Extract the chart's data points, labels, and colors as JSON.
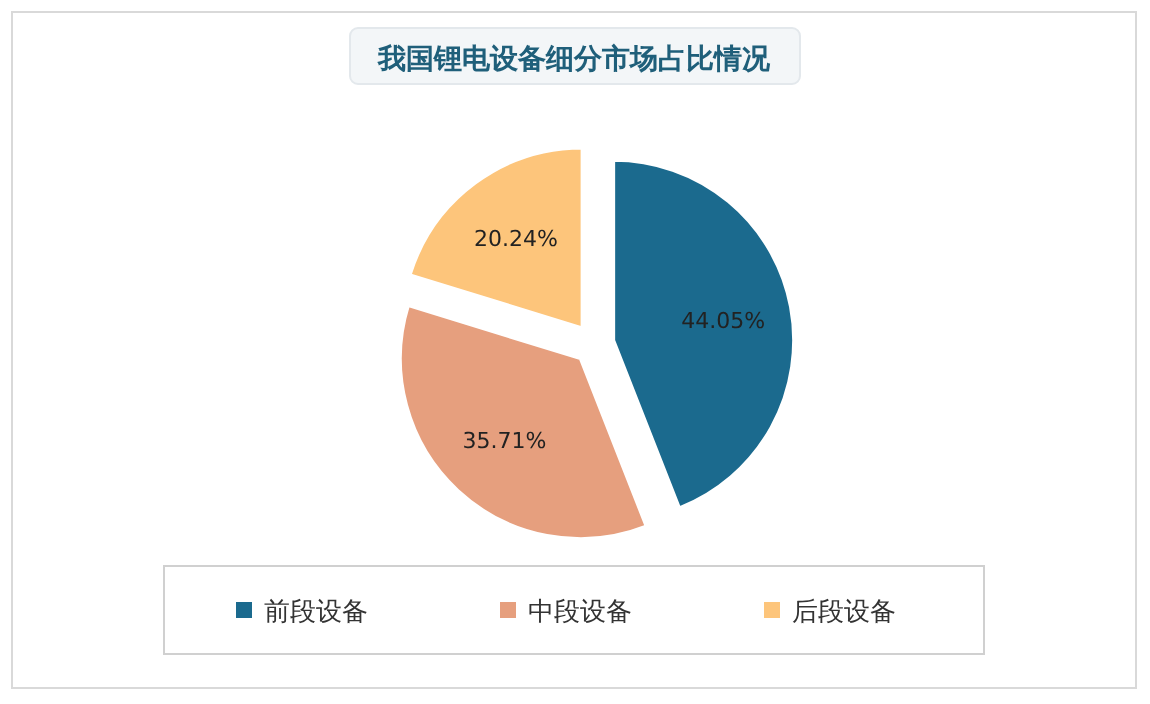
{
  "chart_data": {
    "type": "pie",
    "title": "我国锂电设备细分市场占比情况",
    "categories": [
      "前段设备",
      "中段设备",
      "后段设备"
    ],
    "values": [
      44.05,
      35.71,
      20.24
    ],
    "colors": [
      "#1b6a8e",
      "#e69f7e",
      "#fdc57b"
    ],
    "value_labels": [
      "44.05%",
      "35.71%",
      "20.24%"
    ],
    "legend": "bottom"
  }
}
